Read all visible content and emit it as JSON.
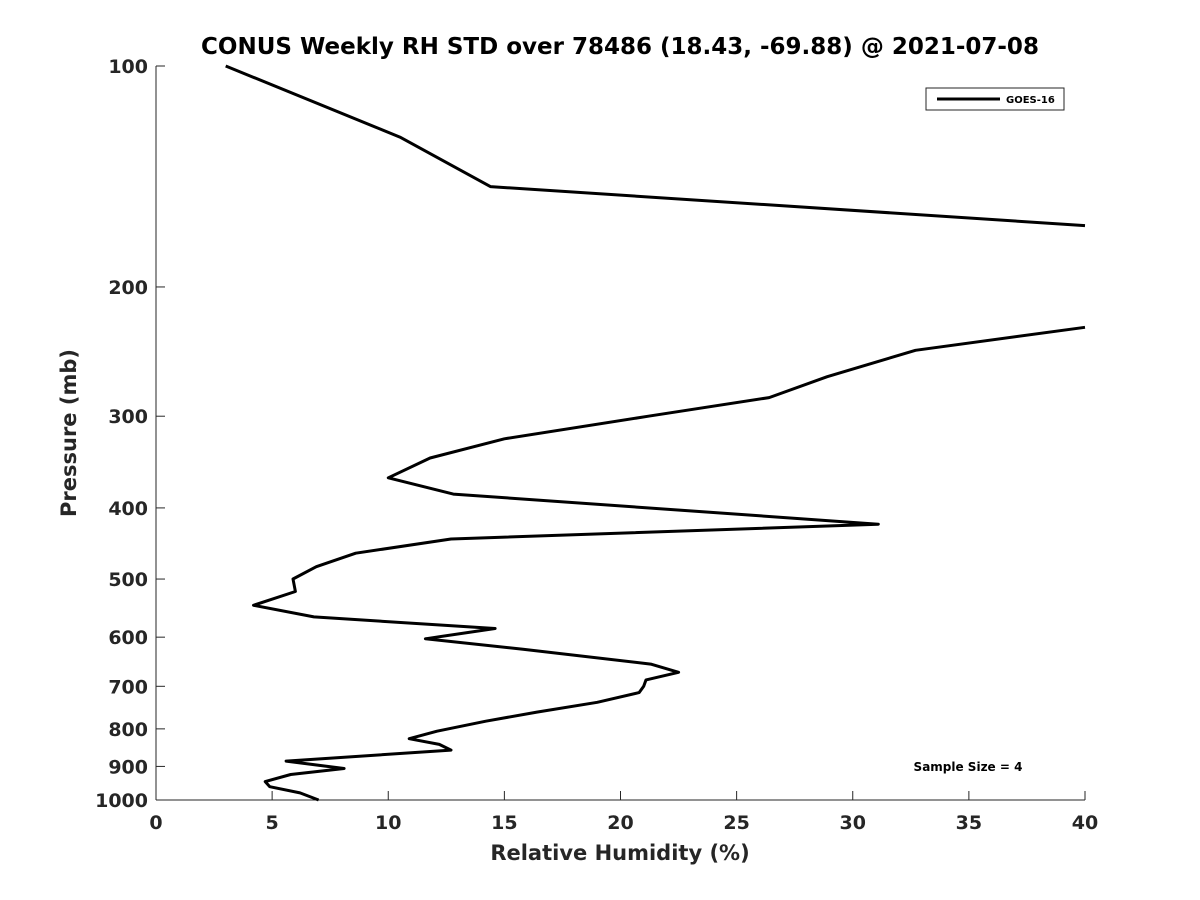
{
  "chart_data": {
    "type": "line",
    "title": "CONUS Weekly RH STD over 78486 (18.43, -69.88) @ 2021-07-08",
    "xlabel": "Relative Humidity (%)",
    "ylabel": "Pressure (mb)",
    "xlim": [
      0,
      40
    ],
    "ylim": [
      100,
      1000
    ],
    "y_scale": "log",
    "y_reversed": true,
    "grid": false,
    "x_ticks": [
      0,
      5,
      10,
      15,
      20,
      25,
      30,
      35,
      40
    ],
    "y_ticks": [
      100,
      200,
      300,
      400,
      500,
      600,
      700,
      800,
      900,
      1000
    ],
    "legend": {
      "position": "top-right",
      "entries": [
        "GOES-16"
      ]
    },
    "annotation": "Sample Size = 4",
    "series": [
      {
        "name": "GOES-16",
        "color": "#000000",
        "segments": [
          [
            {
              "x": 3.0,
              "p": 100
            },
            {
              "x": 10.5,
              "p": 125
            },
            {
              "x": 14.4,
              "p": 146
            },
            {
              "x": 40.0,
              "p": 165
            }
          ],
          [
            {
              "x": 40.0,
              "p": 227
            },
            {
              "x": 32.7,
              "p": 244
            },
            {
              "x": 28.9,
              "p": 265
            },
            {
              "x": 26.4,
              "p": 283
            },
            {
              "x": 21.2,
              "p": 300
            },
            {
              "x": 15.0,
              "p": 322
            },
            {
              "x": 11.8,
              "p": 342
            },
            {
              "x": 10.0,
              "p": 364
            },
            {
              "x": 12.8,
              "p": 383
            },
            {
              "x": 31.1,
              "p": 421
            },
            {
              "x": 12.7,
              "p": 441
            },
            {
              "x": 8.6,
              "p": 461
            },
            {
              "x": 6.9,
              "p": 481
            },
            {
              "x": 5.9,
              "p": 500
            },
            {
              "x": 6.0,
              "p": 520
            },
            {
              "x": 4.2,
              "p": 543
            },
            {
              "x": 6.8,
              "p": 563
            },
            {
              "x": 14.6,
              "p": 584
            },
            {
              "x": 11.6,
              "p": 603
            },
            {
              "x": 15.8,
              "p": 623
            },
            {
              "x": 21.3,
              "p": 653
            },
            {
              "x": 22.5,
              "p": 670
            },
            {
              "x": 21.1,
              "p": 686
            },
            {
              "x": 21.0,
              "p": 700
            },
            {
              "x": 20.8,
              "p": 714
            },
            {
              "x": 19.0,
              "p": 736
            },
            {
              "x": 16.4,
              "p": 759
            },
            {
              "x": 14.2,
              "p": 781
            },
            {
              "x": 12.1,
              "p": 806
            },
            {
              "x": 10.9,
              "p": 825
            },
            {
              "x": 12.2,
              "p": 840
            },
            {
              "x": 12.7,
              "p": 855
            },
            {
              "x": 5.6,
              "p": 885
            },
            {
              "x": 8.1,
              "p": 906
            },
            {
              "x": 5.8,
              "p": 923
            },
            {
              "x": 4.7,
              "p": 944
            },
            {
              "x": 4.9,
              "p": 959
            },
            {
              "x": 6.2,
              "p": 978
            },
            {
              "x": 7.0,
              "p": 1000
            }
          ]
        ]
      }
    ]
  }
}
